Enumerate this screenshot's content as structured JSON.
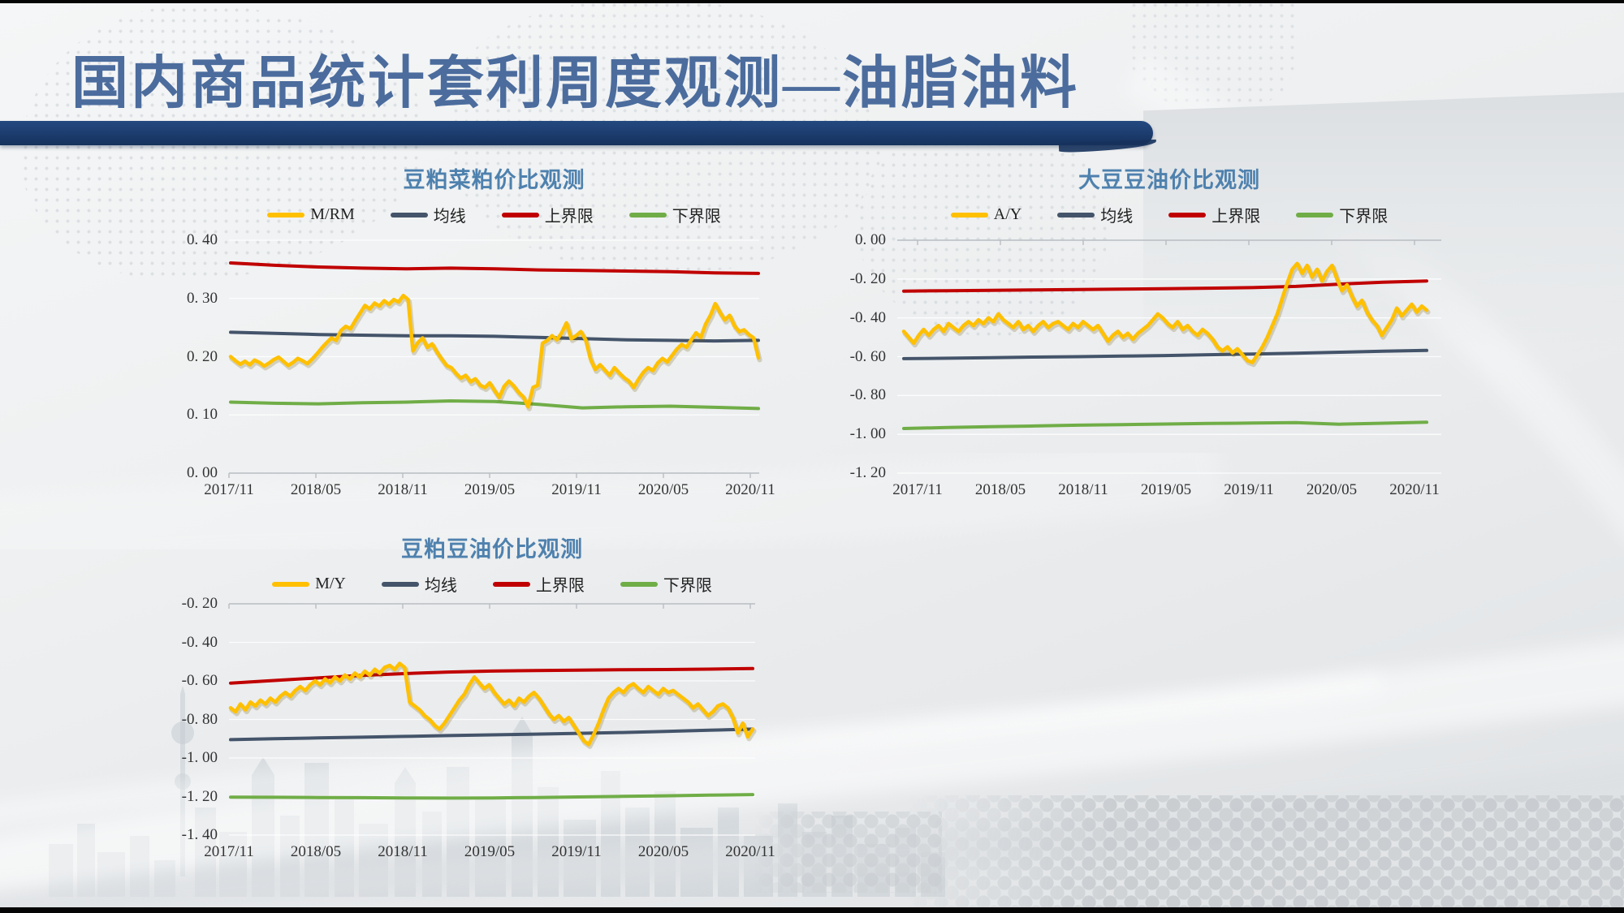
{
  "slide": {
    "title": "国内商品统计套利周度观测—油脂油料"
  },
  "colors": {
    "accent_navy": "#1c3c6e",
    "title_blue": "#4b6c9d",
    "chart_title_blue": "#4e81ae",
    "series_yellow": "#FFC000",
    "series_slate": "#44546A",
    "series_red": "#C00000",
    "series_green": "#70AD47"
  },
  "chart_data": [
    {
      "type": "line",
      "title": "豆粕菜粕价比观测",
      "ylim": [
        0.0,
        0.4
      ],
      "axis": "bottom",
      "grid": true,
      "legend_position": "top",
      "yticks": [
        "0. 40",
        "0. 30",
        "0. 20",
        "0. 10",
        "0. 00"
      ],
      "xticks": [
        "2017/11",
        "2018/05",
        "2018/11",
        "2019/05",
        "2019/11",
        "2020/05",
        "2020/11"
      ],
      "series": [
        {
          "name": "M/RM",
          "color": "#FFC000",
          "width": 4.5,
          "main": true,
          "values": [
            0.2,
            0.193,
            0.187,
            0.192,
            0.186,
            0.194,
            0.19,
            0.184,
            0.189,
            0.195,
            0.199,
            0.192,
            0.185,
            0.19,
            0.197,
            0.193,
            0.188,
            0.196,
            0.205,
            0.215,
            0.224,
            0.232,
            0.228,
            0.245,
            0.252,
            0.248,
            0.262,
            0.275,
            0.288,
            0.282,
            0.292,
            0.287,
            0.296,
            0.29,
            0.298,
            0.294,
            0.305,
            0.298,
            0.21,
            0.224,
            0.232,
            0.216,
            0.222,
            0.208,
            0.196,
            0.185,
            0.181,
            0.171,
            0.163,
            0.168,
            0.157,
            0.162,
            0.151,
            0.147,
            0.155,
            0.142,
            0.13,
            0.149,
            0.158,
            0.15,
            0.139,
            0.131,
            0.114,
            0.147,
            0.151,
            0.223,
            0.228,
            0.236,
            0.229,
            0.241,
            0.258,
            0.231,
            0.236,
            0.243,
            0.229,
            0.196,
            0.178,
            0.186,
            0.177,
            0.168,
            0.181,
            0.172,
            0.164,
            0.158,
            0.147,
            0.161,
            0.173,
            0.181,
            0.176,
            0.189,
            0.197,
            0.191,
            0.202,
            0.213,
            0.221,
            0.216,
            0.229,
            0.241,
            0.233,
            0.256,
            0.271,
            0.291,
            0.276,
            0.263,
            0.271,
            0.253,
            0.243,
            0.246,
            0.238,
            0.232,
            0.198
          ]
        },
        {
          "name": "均线",
          "color": "#44546A",
          "width": 4,
          "values": [
            0.242,
            0.24,
            0.238,
            0.237,
            0.236,
            0.236,
            0.235,
            0.233,
            0.231,
            0.229,
            0.228,
            0.227,
            0.228
          ]
        },
        {
          "name": "上界限",
          "color": "#C00000",
          "width": 4,
          "values": [
            0.361,
            0.357,
            0.354,
            0.352,
            0.351,
            0.352,
            0.351,
            0.349,
            0.348,
            0.347,
            0.346,
            0.344,
            0.343
          ]
        },
        {
          "name": "下界限",
          "color": "#70AD47",
          "width": 4,
          "values": [
            0.122,
            0.12,
            0.119,
            0.121,
            0.122,
            0.124,
            0.123,
            0.118,
            0.112,
            0.114,
            0.115,
            0.113,
            0.111
          ]
        }
      ]
    },
    {
      "type": "line",
      "title": "大豆豆油价比观测",
      "ylim": [
        -1.2,
        0.0
      ],
      "axis": "top",
      "grid": true,
      "legend_position": "top",
      "yticks": [
        "0. 00",
        "-0. 20",
        "-0. 40",
        "-0. 60",
        "-0. 80",
        "-1. 00",
        "-1. 20"
      ],
      "xticks": [
        "2017/11",
        "2018/05",
        "2018/11",
        "2019/05",
        "2019/11",
        "2020/05",
        "2020/11"
      ],
      "series": [
        {
          "name": "A/Y",
          "color": "#FFC000",
          "width": 4.5,
          "main": true,
          "values": [
            -0.47,
            -0.5,
            -0.53,
            -0.49,
            -0.46,
            -0.49,
            -0.46,
            -0.44,
            -0.47,
            -0.43,
            -0.45,
            -0.47,
            -0.44,
            -0.42,
            -0.44,
            -0.41,
            -0.43,
            -0.4,
            -0.42,
            -0.38,
            -0.41,
            -0.43,
            -0.45,
            -0.42,
            -0.46,
            -0.44,
            -0.47,
            -0.44,
            -0.42,
            -0.45,
            -0.43,
            -0.42,
            -0.44,
            -0.46,
            -0.43,
            -0.45,
            -0.42,
            -0.44,
            -0.46,
            -0.44,
            -0.48,
            -0.52,
            -0.49,
            -0.47,
            -0.5,
            -0.48,
            -0.51,
            -0.48,
            -0.46,
            -0.44,
            -0.41,
            -0.38,
            -0.4,
            -0.43,
            -0.45,
            -0.42,
            -0.46,
            -0.44,
            -0.47,
            -0.49,
            -0.46,
            -0.48,
            -0.51,
            -0.55,
            -0.57,
            -0.55,
            -0.58,
            -0.56,
            -0.59,
            -0.62,
            -0.63,
            -0.59,
            -0.55,
            -0.5,
            -0.44,
            -0.38,
            -0.3,
            -0.22,
            -0.15,
            -0.12,
            -0.17,
            -0.13,
            -0.19,
            -0.15,
            -0.21,
            -0.16,
            -0.13,
            -0.2,
            -0.26,
            -0.23,
            -0.29,
            -0.34,
            -0.31,
            -0.37,
            -0.41,
            -0.44,
            -0.49,
            -0.45,
            -0.41,
            -0.35,
            -0.39,
            -0.36,
            -0.33,
            -0.37,
            -0.34,
            -0.36
          ]
        },
        {
          "name": "均线",
          "color": "#44546A",
          "width": 4,
          "values": [
            -0.61,
            -0.608,
            -0.605,
            -0.602,
            -0.6,
            -0.597,
            -0.594,
            -0.59,
            -0.586,
            -0.582,
            -0.577,
            -0.572,
            -0.568
          ]
        },
        {
          "name": "上界限",
          "color": "#C00000",
          "width": 4,
          "values": [
            -0.262,
            -0.26,
            -0.258,
            -0.256,
            -0.254,
            -0.252,
            -0.25,
            -0.247,
            -0.244,
            -0.238,
            -0.226,
            -0.216,
            -0.21
          ]
        },
        {
          "name": "下界限",
          "color": "#70AD47",
          "width": 4,
          "values": [
            -0.97,
            -0.965,
            -0.961,
            -0.957,
            -0.953,
            -0.95,
            -0.947,
            -0.944,
            -0.942,
            -0.94,
            -0.948,
            -0.943,
            -0.938
          ]
        }
      ]
    },
    {
      "type": "line",
      "title": "豆粕豆油价比观测",
      "ylim": [
        -1.4,
        -0.2
      ],
      "axis": "top",
      "grid": true,
      "legend_position": "top",
      "yticks": [
        "-0. 20",
        "-0. 40",
        "-0. 60",
        "-0. 80",
        "-1. 00",
        "-1. 20",
        "-1. 40"
      ],
      "xticks": [
        "2017/11",
        "2018/05",
        "2018/11",
        "2019/05",
        "2019/11",
        "2020/05",
        "2020/11"
      ],
      "series": [
        {
          "name": "M/Y",
          "color": "#FFC000",
          "width": 4.5,
          "main": true,
          "values": [
            -0.74,
            -0.76,
            -0.72,
            -0.75,
            -0.71,
            -0.73,
            -0.7,
            -0.72,
            -0.69,
            -0.71,
            -0.68,
            -0.66,
            -0.68,
            -0.65,
            -0.63,
            -0.65,
            -0.62,
            -0.6,
            -0.62,
            -0.59,
            -0.61,
            -0.58,
            -0.6,
            -0.57,
            -0.59,
            -0.56,
            -0.58,
            -0.55,
            -0.57,
            -0.54,
            -0.56,
            -0.53,
            -0.52,
            -0.54,
            -0.51,
            -0.53,
            -0.71,
            -0.73,
            -0.75,
            -0.78,
            -0.8,
            -0.83,
            -0.85,
            -0.82,
            -0.78,
            -0.74,
            -0.7,
            -0.67,
            -0.62,
            -0.58,
            -0.61,
            -0.64,
            -0.62,
            -0.66,
            -0.69,
            -0.72,
            -0.7,
            -0.73,
            -0.69,
            -0.71,
            -0.68,
            -0.66,
            -0.69,
            -0.73,
            -0.77,
            -0.8,
            -0.78,
            -0.81,
            -0.79,
            -0.83,
            -0.87,
            -0.91,
            -0.93,
            -0.88,
            -0.82,
            -0.75,
            -0.69,
            -0.66,
            -0.64,
            -0.66,
            -0.63,
            -0.615,
            -0.64,
            -0.66,
            -0.63,
            -0.65,
            -0.67,
            -0.64,
            -0.66,
            -0.65,
            -0.67,
            -0.69,
            -0.71,
            -0.74,
            -0.72,
            -0.75,
            -0.78,
            -0.76,
            -0.73,
            -0.72,
            -0.74,
            -0.79,
            -0.87,
            -0.82,
            -0.89,
            -0.85
          ]
        },
        {
          "name": "均线",
          "color": "#44546A",
          "width": 4,
          "values": [
            -0.905,
            -0.9,
            -0.896,
            -0.892,
            -0.888,
            -0.884,
            -0.88,
            -0.876,
            -0.872,
            -0.868,
            -0.862,
            -0.856,
            -0.85
          ]
        },
        {
          "name": "上界限",
          "color": "#C00000",
          "width": 4,
          "values": [
            -0.612,
            -0.598,
            -0.585,
            -0.572,
            -0.562,
            -0.554,
            -0.549,
            -0.546,
            -0.544,
            -0.542,
            -0.541,
            -0.539,
            -0.536
          ]
        },
        {
          "name": "下界限",
          "color": "#70AD47",
          "width": 4,
          "values": [
            -1.203,
            -1.204,
            -1.205,
            -1.206,
            -1.207,
            -1.208,
            -1.207,
            -1.205,
            -1.202,
            -1.199,
            -1.196,
            -1.193,
            -1.19
          ]
        }
      ]
    }
  ]
}
